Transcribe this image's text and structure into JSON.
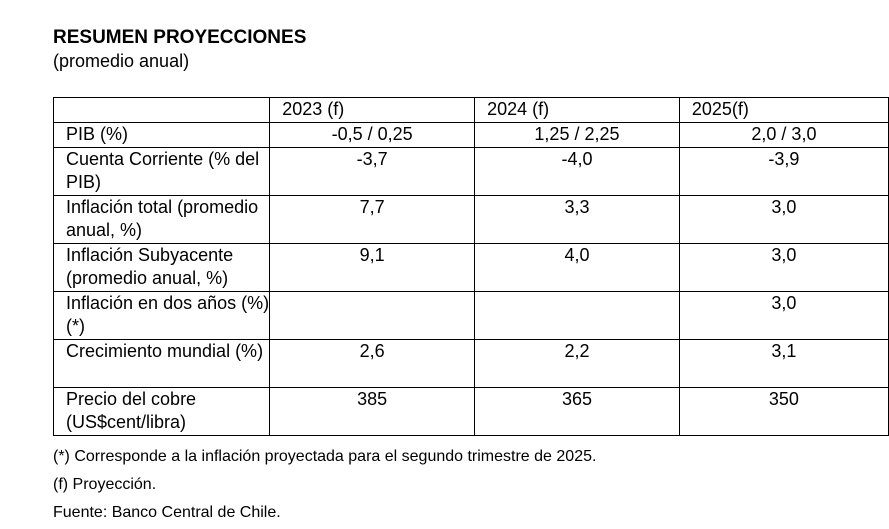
{
  "title": "RESUMEN PROYECCIONES",
  "subtitle": "(promedio anual)",
  "table": {
    "headers": [
      "",
      "2023 (f)",
      "2024 (f)",
      "2025(f)"
    ],
    "rows": [
      {
        "label": "PIB (%)",
        "values": [
          "-0,5 / 0,25",
          "1,25 / 2,25",
          "2,0 / 3,0"
        ]
      },
      {
        "label": "Cuenta Corriente (% del PIB)",
        "values": [
          "-3,7",
          "-4,0",
          "-3,9"
        ]
      },
      {
        "label": "Inflación total (promedio anual, %)",
        "values": [
          "7,7",
          "3,3",
          "3,0"
        ]
      },
      {
        "label": "Inflación Subyacente (promedio anual, %)",
        "values": [
          "9,1",
          "4,0",
          "3,0"
        ]
      },
      {
        "label": "Inflación en dos años (%) (*)",
        "values": [
          "",
          "",
          "3,0"
        ]
      },
      {
        "label": "Crecimiento mundial (%)",
        "values": [
          "2,6",
          "2,2",
          "3,1"
        ]
      },
      {
        "label": "Precio del cobre (US$cent/libra)",
        "values": [
          "385",
          "365",
          "350"
        ]
      }
    ]
  },
  "notes": [
    "(*) Corresponde a la inflación proyectada para el segundo trimestre de 2025.",
    "(f) Proyección.",
    "Fuente: Banco Central de Chile."
  ]
}
